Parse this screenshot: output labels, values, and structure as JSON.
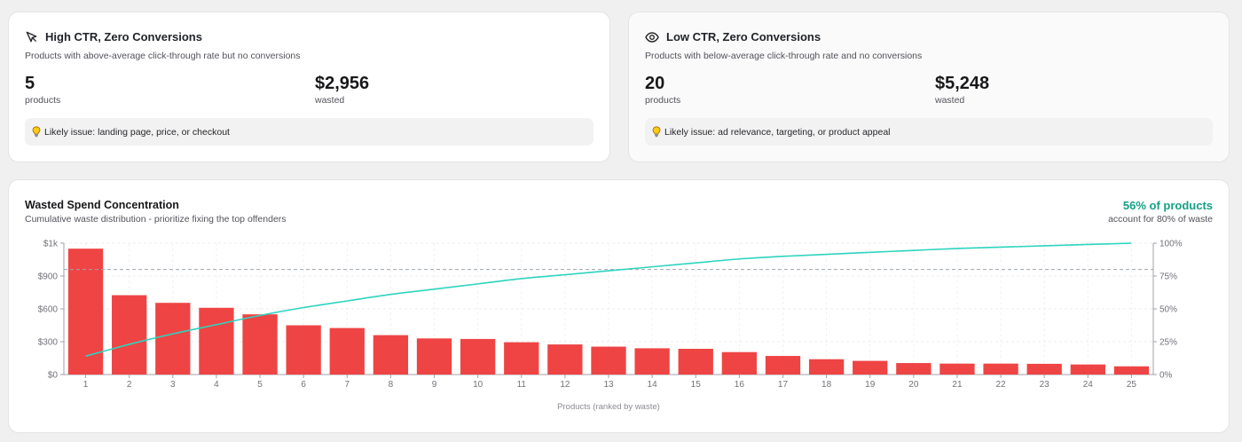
{
  "cards": [
    {
      "icon": "cursor-arrow-icon",
      "title": "High CTR, Zero Conversions",
      "description": "Products with above-average click-through rate but no conversions",
      "count_value": "5",
      "count_label": "products",
      "wasted_value": "$2,956",
      "wasted_label": "wasted",
      "issue": "Likely issue: landing page, price, or checkout"
    },
    {
      "icon": "eye-icon",
      "title": "Low CTR, Zero Conversions",
      "description": "Products with below-average click-through rate and no conversions",
      "count_value": "20",
      "count_label": "products",
      "wasted_value": "$5,248",
      "wasted_label": "wasted",
      "issue": "Likely issue: ad relevance, targeting, or product appeal"
    }
  ],
  "chart_panel": {
    "title": "Wasted Spend Concentration",
    "subtitle": "Cumulative waste distribution - prioritize fixing the top offenders",
    "kpi_value": "56% of products",
    "kpi_label": "account for 80% of waste"
  },
  "colors": {
    "bar": "#ef4444",
    "line": "#2dd4bf",
    "kpi": "#14a085",
    "bulb": "#eab308"
  },
  "chart_data": {
    "type": "bar",
    "xlabel": "Products (ranked by waste)",
    "ylabel": "",
    "categories": [
      "1",
      "2",
      "3",
      "4",
      "5",
      "6",
      "7",
      "8",
      "9",
      "10",
      "11",
      "12",
      "13",
      "14",
      "15",
      "16",
      "17",
      "18",
      "19",
      "20",
      "21",
      "22",
      "23",
      "24",
      "25"
    ],
    "series": [
      {
        "type": "bar",
        "axis": "left",
        "values": [
          1150,
          725,
          655,
          610,
          550,
          450,
          425,
          360,
          330,
          325,
          295,
          275,
          255,
          240,
          235,
          205,
          170,
          140,
          125,
          105,
          100,
          100,
          98,
          92,
          75
        ]
      },
      {
        "type": "line",
        "axis": "right",
        "values": [
          14,
          23,
          31,
          38,
          45,
          51,
          56,
          61,
          65,
          69,
          73,
          76,
          79,
          82,
          85,
          88,
          90,
          91.5,
          93,
          94.5,
          96,
          97,
          98,
          99,
          100
        ]
      }
    ],
    "y_left": {
      "ticks": [
        "$0",
        "$300",
        "$600",
        "$900",
        "$1k"
      ],
      "tick_values": [
        0,
        300,
        600,
        900,
        1200
      ],
      "range": [
        0,
        1200
      ]
    },
    "y_right": {
      "ticks": [
        "0%",
        "25%",
        "50%",
        "75%",
        "100%"
      ],
      "tick_values": [
        0,
        25,
        50,
        75,
        100
      ],
      "range": [
        0,
        100
      ]
    },
    "reference_line": {
      "axis": "right",
      "value": 80,
      "style": "dashed"
    },
    "grid": true,
    "legend": "none"
  }
}
